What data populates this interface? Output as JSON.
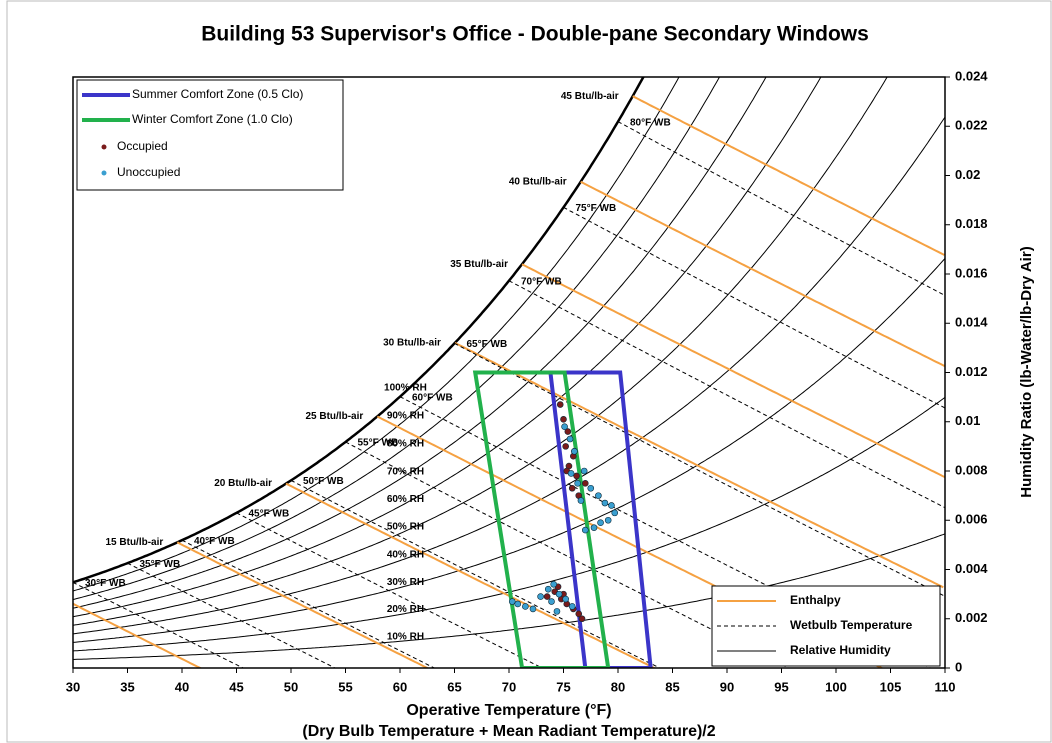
{
  "chart_data": {
    "type": "psychrometric",
    "title": "Building 53 Supervisor's Office - Double-pane Secondary Windows",
    "xlabel": "Operative Temperature (°F)",
    "xlabel_note": "(Dry Bulb Temperature + Mean Radiant Temperature)/2",
    "y2label": "Humidity Ratio (lb-Water/lb-Dry Air)",
    "xlim": [
      30,
      110
    ],
    "xticks": [
      30,
      35,
      40,
      45,
      50,
      55,
      60,
      65,
      70,
      75,
      80,
      85,
      90,
      95,
      100,
      105,
      110
    ],
    "y2lim": [
      0,
      0.024
    ],
    "y2ticks": [
      0,
      0.002,
      0.004,
      0.006,
      0.008,
      0.01,
      0.012,
      0.014,
      0.016,
      0.018,
      0.02,
      0.022,
      0.024
    ],
    "zones": [
      {
        "name": "Summer Comfort Zone (0.5 Clo)",
        "color": "#3b35c9",
        "x": [
          73.8,
          80.2,
          83.0,
          77.0
        ],
        "y": [
          0.012,
          0.012,
          0,
          0
        ]
      },
      {
        "name": "Winter Comfort Zone (1.0 Clo)",
        "color": "#22b14c",
        "x": [
          66.9,
          75.1,
          79.1,
          71.2
        ],
        "y": [
          0.012,
          0.012,
          0,
          0
        ]
      }
    ],
    "series": [
      {
        "name": "Occupied",
        "color": "#7a1b1b",
        "x": [
          74.7,
          75.0,
          75.4,
          75.2,
          75.9,
          75.5,
          76.2,
          77.0,
          76.4,
          75.8,
          75.3,
          76.0,
          73.5,
          74.2,
          74.8,
          75.3,
          75.9,
          76.4,
          76.7,
          75.0,
          74.5
        ],
        "y": [
          0.0107,
          0.0101,
          0.0096,
          0.009,
          0.0086,
          0.0082,
          0.0078,
          0.0075,
          0.007,
          0.0073,
          0.008,
          0.0088,
          0.0029,
          0.0031,
          0.0028,
          0.0026,
          0.0024,
          0.0022,
          0.002,
          0.003,
          0.0033
        ]
      },
      {
        "name": "Unoccupied",
        "color": "#3a9fd0",
        "x": [
          75.1,
          75.6,
          76.0,
          75.7,
          76.3,
          76.9,
          77.5,
          78.2,
          78.8,
          79.4,
          79.7,
          79.1,
          78.4,
          77.8,
          77.0,
          76.6,
          70.3,
          70.8,
          71.5,
          72.2,
          72.9,
          73.6,
          74.1,
          74.6,
          75.2,
          75.8,
          73.9,
          74.4
        ],
        "y": [
          0.0098,
          0.0093,
          0.0088,
          0.0079,
          0.0075,
          0.008,
          0.0073,
          0.007,
          0.0067,
          0.0066,
          0.0063,
          0.006,
          0.0059,
          0.0057,
          0.0056,
          0.0068,
          0.0027,
          0.0026,
          0.0025,
          0.0024,
          0.0029,
          0.0032,
          0.0034,
          0.003,
          0.0028,
          0.0025,
          0.0027,
          0.0023
        ]
      }
    ],
    "enthalpy": {
      "name": "Enthalpy",
      "color": "#f5a142",
      "values": [
        10,
        15,
        20,
        25,
        30,
        35,
        40,
        45
      ],
      "value_labels": [
        null,
        "15 Btu/lb-air",
        "20 Btu/lb-air",
        "25 Btu/lb-air",
        "30 Btu/lb-air",
        "35 Btu/lb-air",
        "40 Btu/lb-air",
        "45 Btu/lb-air"
      ]
    },
    "wetbulb": {
      "name": "Wetbulb Temperature",
      "color": "#000000",
      "values": [
        30,
        35,
        40,
        45,
        50,
        55,
        60,
        65,
        70,
        75,
        80
      ],
      "value_labels": [
        "30°F WB",
        "35°F WB",
        "40°F WB",
        "45°F WB",
        "50°F WB",
        "55°F WB",
        "60°F WB",
        "65°F WB",
        "70°F WB",
        "75°F WB",
        "80°F WB"
      ]
    },
    "rh": {
      "name": "Relative Humidity",
      "color": "#000000",
      "values": [
        10,
        20,
        30,
        40,
        50,
        60,
        70,
        80,
        90,
        100
      ],
      "value_labels": [
        "10% RH",
        "20% RH",
        "30% RH",
        "40% RH",
        "50% RH",
        "60% RH",
        "70% RH",
        "80% RH",
        "90% RH",
        "100% RH"
      ]
    }
  }
}
